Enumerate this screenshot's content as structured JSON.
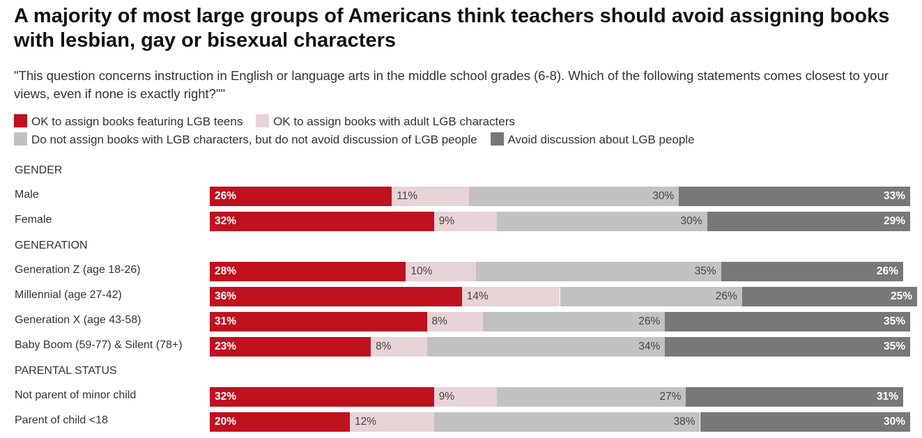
{
  "title": "A majority of most large groups of Americans think teachers should avoid assigning books with lesbian, gay or bisexual characters",
  "subtitle": "\"This question concerns instruction in English or language arts in the middle school grades (6-8). Which of the following statements comes closest to your views, even if none is exactly right?\"\"",
  "colors": {
    "teens": "#c0111f",
    "adult": "#e8d3d7",
    "no_books": "#c2c2c2",
    "avoid": "#787878"
  },
  "chart_data": {
    "type": "bar",
    "orientation": "horizontal",
    "stacked": true,
    "xlim": [
      0,
      100
    ],
    "series": [
      {
        "name": "OK to assign books featuring LGB teens",
        "color_key": "teens",
        "values": [
          26,
          32,
          28,
          36,
          31,
          23,
          32,
          20
        ]
      },
      {
        "name": "OK to assign books with adult LGB characters",
        "color_key": "adult",
        "values": [
          11,
          9,
          10,
          14,
          8,
          8,
          9,
          12
        ]
      },
      {
        "name": "Do not assign books with LGB characters, but do not avoid discussion of LGB people",
        "color_key": "no_books",
        "values": [
          30,
          30,
          35,
          26,
          26,
          34,
          27,
          38
        ]
      },
      {
        "name": "Avoid discussion about LGB people",
        "color_key": "avoid",
        "values": [
          33,
          29,
          26,
          25,
          35,
          35,
          31,
          30
        ]
      }
    ],
    "groups": [
      {
        "label": "GENDER",
        "rows": [
          {
            "label": "Male",
            "index": 0
          },
          {
            "label": "Female",
            "index": 1
          }
        ]
      },
      {
        "label": "GENERATION",
        "rows": [
          {
            "label": "Generation Z (age 18-26)",
            "index": 2
          },
          {
            "label": "Millennial (age 27-42)",
            "index": 3
          },
          {
            "label": "Generation X (age 43-58)",
            "index": 4
          },
          {
            "label": "Baby Boom (59-77) & Silent (78+)",
            "index": 5
          }
        ]
      },
      {
        "label": "PARENTAL STATUS",
        "rows": [
          {
            "label": "Not parent of minor child",
            "index": 6
          },
          {
            "label": "Parent of child <18",
            "index": 7
          }
        ]
      }
    ],
    "value_suffix": "%",
    "legend": "top"
  }
}
